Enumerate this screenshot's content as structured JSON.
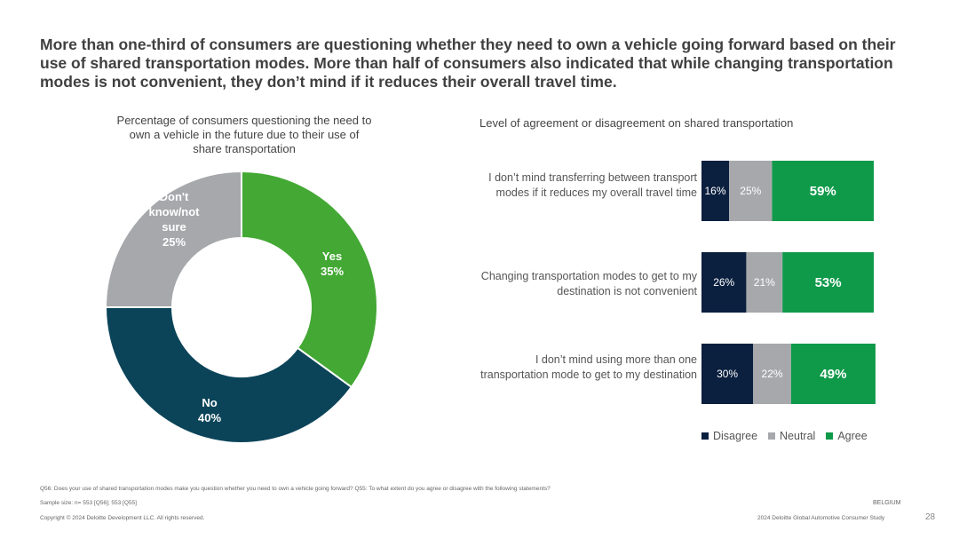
{
  "headline": "More than one-third of consumers are questioning whether they need to own a vehicle going forward based on their use of shared transportation modes. More than half of consumers also indicated that while changing transportation modes is not convenient, they don’t mind if it reduces their overall travel time.",
  "colors": {
    "disagree": "#0b1f3f",
    "neutral": "#a6a8ab",
    "agree": "#0f9a4a",
    "no": "#0b4459",
    "yes": "#43a834",
    "dont_know": "#a6a8ab"
  },
  "chart_data": [
    {
      "type": "pie",
      "title": "Percentage of consumers questioning the need to own a vehicle in the future due to their use of share transportation",
      "slices": [
        {
          "label": "Yes",
          "value": 35,
          "display": "35%",
          "color": "#43a834"
        },
        {
          "label": "No",
          "value": 40,
          "display": "40%",
          "color": "#0b4459"
        },
        {
          "label": "Don't know/not sure",
          "value": 25,
          "display": "25%",
          "color": "#a6a8ab"
        }
      ]
    },
    {
      "type": "bar",
      "orientation": "horizontal",
      "stacked": true,
      "title": "Level of agreement or disagreement on shared transportation",
      "categories": [
        "I don’t mind transferring between transport modes if it reduces my overall travel time",
        "Changing transportation modes to get to my destination is not convenient",
        "I don’t mind using more than one transportation mode to get to my destination"
      ],
      "series": [
        {
          "name": "Disagree",
          "values": [
            16,
            26,
            30
          ],
          "color": "#0b1f3f"
        },
        {
          "name": "Neutral",
          "values": [
            25,
            21,
            22
          ],
          "color": "#a6a8ab"
        },
        {
          "name": "Agree",
          "values": [
            59,
            53,
            49
          ],
          "color": "#0f9a4a"
        }
      ],
      "legend": "bottom"
    }
  ],
  "footer": {
    "question": "Q56: Does your use of shared transportation modes make you question whether you need to own a vehicle going forward? Q55: To what extent do you agree or disagree with the following statements?",
    "sample": "Sample size: n= 553 [Q56]; 553 [Q55]",
    "copyright": "Copyright © 2024 Deloitte Development LLC. All rights reserved.",
    "country": "BELGIUM",
    "study": "2024 Deloitte Global Automotive Consumer Study",
    "page": "28"
  }
}
